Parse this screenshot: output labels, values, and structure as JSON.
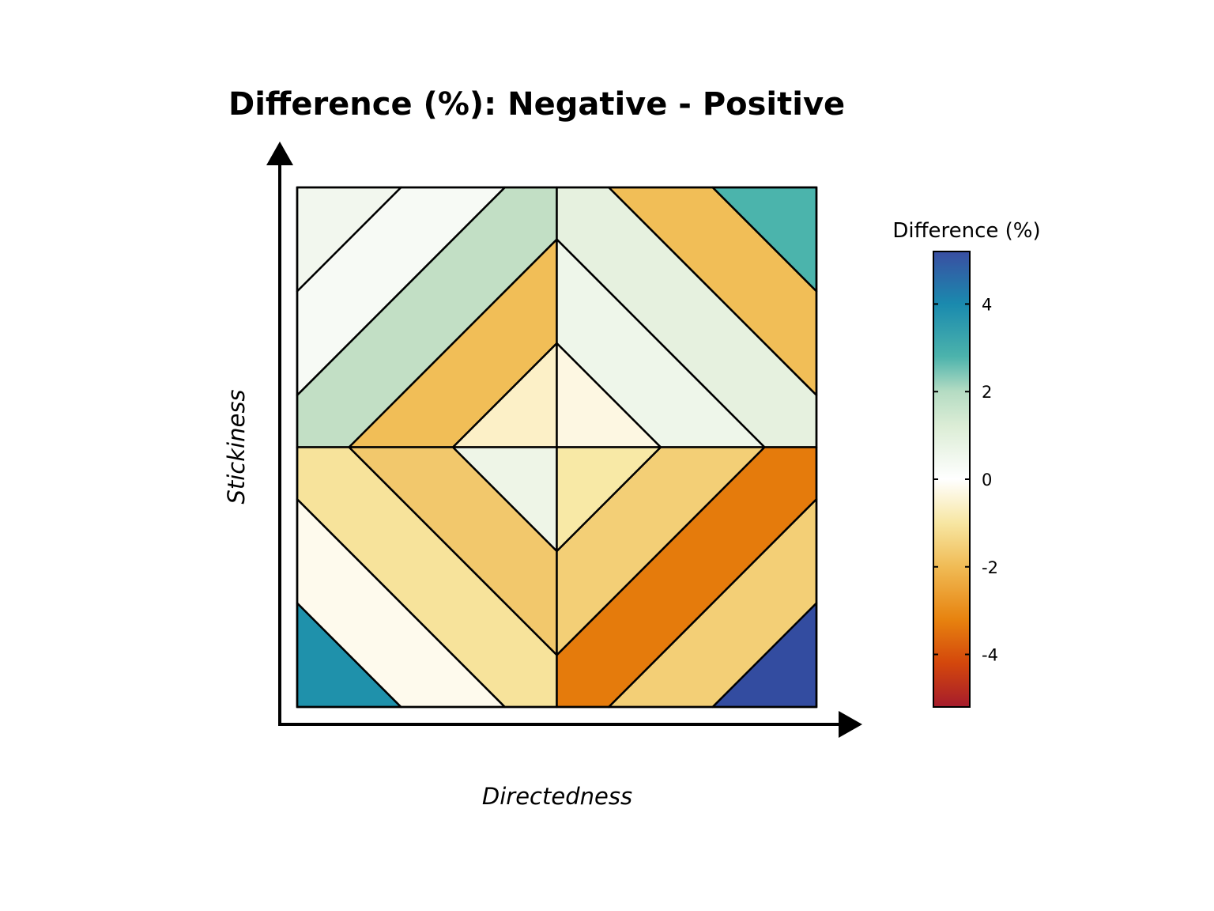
{
  "chart_data": {
    "type": "heatmap",
    "title": "Difference (%): Negative - Positive",
    "xlabel": "Directedness",
    "ylabel": "Stickiness",
    "legend": {
      "title": "Difference (%)",
      "ticks": [
        4,
        2,
        0,
        -2,
        -4
      ],
      "tick_labels": [
        "4",
        "2",
        "0",
        "-2",
        "-4"
      ],
      "range": [
        -5.2,
        5.2
      ],
      "placement": "right",
      "gradient": [
        {
          "value": -5.2,
          "color": "#a51c2c"
        },
        {
          "value": -4.2,
          "color": "#d4470c"
        },
        {
          "value": -3.2,
          "color": "#e7830f"
        },
        {
          "value": -2.0,
          "color": "#f0bb55"
        },
        {
          "value": -1.0,
          "color": "#f7e6a2"
        },
        {
          "value": 0.0,
          "color": "#ffffff"
        },
        {
          "value": 1.2,
          "color": "#dcedd6"
        },
        {
          "value": 2.0,
          "color": "#b5dcc3"
        },
        {
          "value": 2.8,
          "color": "#4cb3ac"
        },
        {
          "value": 4.0,
          "color": "#1a8aae"
        },
        {
          "value": 5.2,
          "color": "#3a4ea2"
        }
      ]
    },
    "panels": [
      {
        "position": "top-left",
        "bands": [
          {
            "value": 0.5,
            "color": "#f2f7ee"
          },
          {
            "value": 0.3,
            "color": "#f7faf5"
          },
          {
            "value": 2.1,
            "color": "#c2dfc5"
          },
          {
            "value": -2.1,
            "color": "#f1be57"
          },
          {
            "value": -0.9,
            "color": "#fcf0c7"
          }
        ]
      },
      {
        "position": "top-right",
        "bands": [
          {
            "value": 2.9,
            "color": "#4bb4ac"
          },
          {
            "value": -2.1,
            "color": "#f1be57"
          },
          {
            "value": 0.9,
            "color": "#e6f1df"
          },
          {
            "value": 0.6,
            "color": "#eef6ea"
          },
          {
            "value": -0.4,
            "color": "#fdf7e2"
          }
        ]
      },
      {
        "position": "bottom-left",
        "bands": [
          {
            "value": 3.8,
            "color": "#1f91ab"
          },
          {
            "value": -0.3,
            "color": "#fefaed"
          },
          {
            "value": -1.2,
            "color": "#f7e39b"
          },
          {
            "value": -1.9,
            "color": "#f2c86c"
          },
          {
            "value": 0.6,
            "color": "#eef5e7"
          }
        ]
      },
      {
        "position": "bottom-right",
        "bands": [
          {
            "value": 5.0,
            "color": "#334ca0"
          },
          {
            "value": -1.8,
            "color": "#f3cf76"
          },
          {
            "value": -3.3,
            "color": "#e57b0c"
          },
          {
            "value": -1.8,
            "color": "#f3cf76"
          },
          {
            "value": -1.2,
            "color": "#f8e9a6"
          }
        ]
      }
    ],
    "grid": false,
    "axis_ticks": false
  }
}
